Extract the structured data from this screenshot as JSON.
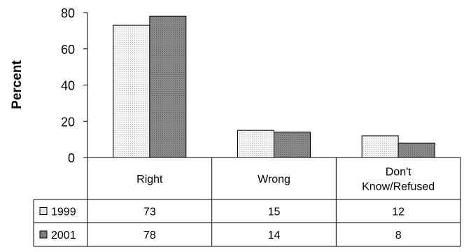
{
  "chart_data": {
    "type": "bar",
    "ylabel": "Percent",
    "ylim": [
      0,
      80
    ],
    "yticks": [
      0,
      20,
      40,
      60,
      80
    ],
    "categories": [
      {
        "lines": [
          "Right"
        ]
      },
      {
        "lines": [
          "Wrong"
        ]
      },
      {
        "lines": [
          "Don't",
          "Know/Refused"
        ]
      }
    ],
    "series": [
      {
        "name": "1999",
        "values": [
          73,
          15,
          12
        ],
        "color": "#e6e6e6"
      },
      {
        "name": "2001",
        "values": [
          78,
          14,
          8
        ],
        "color": "#808080"
      }
    ],
    "grid": false,
    "legend": "data table below chart"
  }
}
